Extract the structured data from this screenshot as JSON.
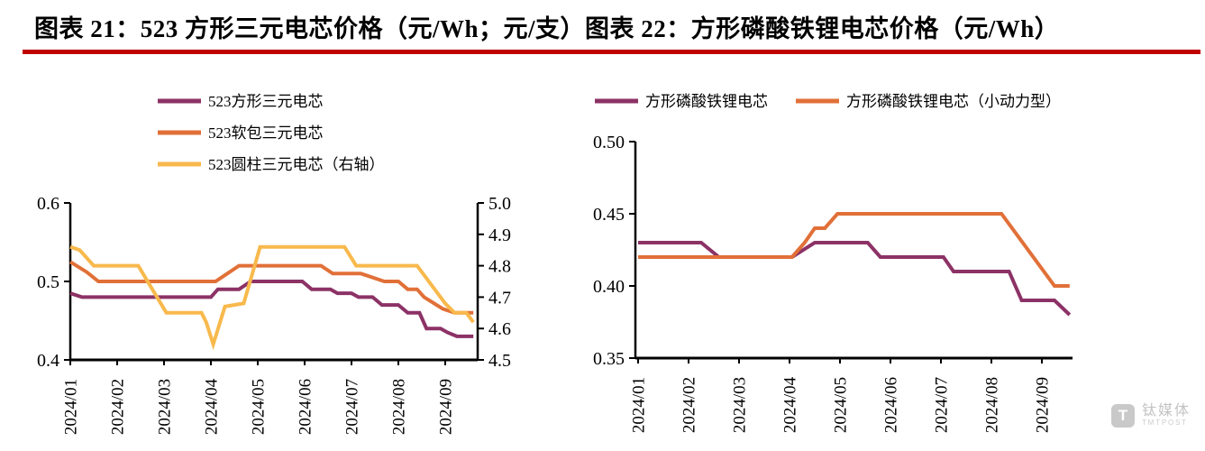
{
  "header": {
    "title_left": "图表 21：523 方形三元电芯价格（元/Wh；元/支）",
    "title_right": "图表 22：方形磷酸铁锂电芯价格（元/Wh）",
    "rule_color": "#c00000"
  },
  "watermark": {
    "logo_text": "T",
    "name_cn": "钛媒体",
    "name_en": "TMTPOST"
  },
  "colors": {
    "purple": "#8c3266",
    "orange": "#e17038",
    "yellow": "#f8b94c",
    "axis": "#000000"
  },
  "chart_data": [
    {
      "type": "line",
      "title": "523方形三元电芯价格（元/Wh；元/支）",
      "grid": false,
      "legend_position": "top-left-vertical",
      "x_domain": [
        1,
        9.6
      ],
      "x_tick_labels": [
        "2024/01",
        "2024/02",
        "2024/03",
        "2024/04",
        "2024/05",
        "2024/06",
        "2024/07",
        "2024/08",
        "2024/09"
      ],
      "left_axis": {
        "range": [
          0.4,
          0.6
        ],
        "ticks": [
          [
            0.4,
            "0.4"
          ],
          [
            0.5,
            "0.5"
          ],
          [
            0.6,
            "0.6"
          ]
        ]
      },
      "right_axis": {
        "range": [
          4.5,
          5.0
        ],
        "ticks": [
          [
            4.5,
            "4.5"
          ],
          [
            4.6,
            "4.6"
          ],
          [
            4.7,
            "4.7"
          ],
          [
            4.8,
            "4.8"
          ],
          [
            4.9,
            "4.9"
          ],
          [
            5.0,
            "5.0"
          ]
        ]
      },
      "series": [
        {
          "name": "523方形三元电芯",
          "color": "#8c3266",
          "axis": "left",
          "points": [
            [
              1,
              0.485
            ],
            [
              1.25,
              0.48
            ],
            [
              4.0,
              0.48
            ],
            [
              4.15,
              0.49
            ],
            [
              4.6,
              0.49
            ],
            [
              4.85,
              0.5
            ],
            [
              5.95,
              0.5
            ],
            [
              6.15,
              0.49
            ],
            [
              6.55,
              0.49
            ],
            [
              6.7,
              0.485
            ],
            [
              7.0,
              0.485
            ],
            [
              7.15,
              0.48
            ],
            [
              7.45,
              0.48
            ],
            [
              7.65,
              0.47
            ],
            [
              8.0,
              0.47
            ],
            [
              8.2,
              0.46
            ],
            [
              8.45,
              0.46
            ],
            [
              8.6,
              0.44
            ],
            [
              8.9,
              0.44
            ],
            [
              9.05,
              0.435
            ],
            [
              9.25,
              0.43
            ],
            [
              9.6,
              0.43
            ]
          ]
        },
        {
          "name": "523软包三元电芯",
          "color": "#e17038",
          "axis": "left",
          "points": [
            [
              1,
              0.525
            ],
            [
              1.35,
              0.512
            ],
            [
              1.6,
              0.5
            ],
            [
              4.1,
              0.5
            ],
            [
              4.35,
              0.51
            ],
            [
              4.6,
              0.52
            ],
            [
              6.35,
              0.52
            ],
            [
              6.6,
              0.51
            ],
            [
              7.2,
              0.51
            ],
            [
              7.45,
              0.505
            ],
            [
              7.7,
              0.5
            ],
            [
              8.0,
              0.5
            ],
            [
              8.2,
              0.49
            ],
            [
              8.4,
              0.49
            ],
            [
              8.55,
              0.48
            ],
            [
              8.95,
              0.465
            ],
            [
              9.2,
              0.46
            ],
            [
              9.6,
              0.46
            ]
          ]
        },
        {
          "name": "523圆柱三元电芯（右轴）",
          "color": "#f8b94c",
          "axis": "right",
          "points": [
            [
              1,
              4.86
            ],
            [
              1.2,
              4.85
            ],
            [
              1.5,
              4.8
            ],
            [
              2.45,
              4.8
            ],
            [
              3.05,
              4.65
            ],
            [
              3.8,
              4.65
            ],
            [
              3.9,
              4.62
            ],
            [
              4.05,
              4.55
            ],
            [
              4.3,
              4.67
            ],
            [
              4.7,
              4.68
            ],
            [
              5.05,
              4.86
            ],
            [
              6.85,
              4.86
            ],
            [
              7.1,
              4.8
            ],
            [
              8.4,
              4.8
            ],
            [
              9.0,
              4.68
            ],
            [
              9.2,
              4.65
            ],
            [
              9.45,
              4.65
            ],
            [
              9.6,
              4.62
            ]
          ]
        }
      ]
    },
    {
      "type": "line",
      "title": "方形磷酸铁锂电芯价格（元/Wh）",
      "grid": false,
      "legend_position": "top-horizontal",
      "x_domain": [
        1,
        9.6
      ],
      "x_tick_labels": [
        "2024/01",
        "2024/02",
        "2024/03",
        "2024/04",
        "2024/05",
        "2024/06",
        "2024/07",
        "2024/08",
        "2024/09"
      ],
      "left_axis": {
        "range": [
          0.35,
          0.5
        ],
        "ticks": [
          [
            0.35,
            "0.35"
          ],
          [
            0.4,
            "0.40"
          ],
          [
            0.45,
            "0.45"
          ],
          [
            0.5,
            "0.50"
          ]
        ]
      },
      "series": [
        {
          "name": "方形磷酸铁锂电芯",
          "color": "#8c3266",
          "axis": "left",
          "points": [
            [
              1,
              0.43
            ],
            [
              2.25,
              0.43
            ],
            [
              2.6,
              0.42
            ],
            [
              4.05,
              0.42
            ],
            [
              4.5,
              0.43
            ],
            [
              5.55,
              0.43
            ],
            [
              5.8,
              0.42
            ],
            [
              7.05,
              0.42
            ],
            [
              7.25,
              0.41
            ],
            [
              8.35,
              0.41
            ],
            [
              8.6,
              0.39
            ],
            [
              9.25,
              0.39
            ],
            [
              9.55,
              0.38
            ]
          ]
        },
        {
          "name": "方形磷酸铁锂电芯（小动力型）",
          "color": "#e17038",
          "axis": "left",
          "points": [
            [
              1,
              0.42
            ],
            [
              4.05,
              0.42
            ],
            [
              4.3,
              0.43
            ],
            [
              4.5,
              0.44
            ],
            [
              4.7,
              0.44
            ],
            [
              4.95,
              0.45
            ],
            [
              8.2,
              0.45
            ],
            [
              9.25,
              0.4
            ],
            [
              9.55,
              0.4
            ]
          ]
        }
      ]
    }
  ]
}
